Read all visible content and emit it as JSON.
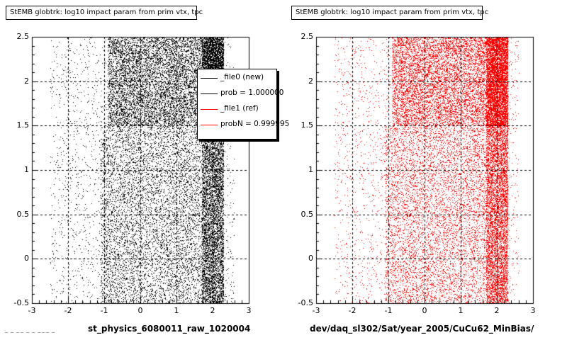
{
  "chart_data": [
    {
      "type": "scatter",
      "title": "StEMB globtrk: log10 impact param from prim vtx, tpc",
      "xlabel": "st_physics_6080011_raw_1020004",
      "ylabel": "",
      "xlim": [
        -3,
        3
      ],
      "ylim": [
        -0.5,
        2.5
      ],
      "x_ticks": [
        "-3",
        "-2",
        "-1",
        "0",
        "1",
        "2",
        "3"
      ],
      "y_ticks": [
        "-0.5",
        "0",
        "0.5",
        "1",
        "1.5",
        "2",
        "2.5"
      ],
      "grid": true,
      "color": "#000000",
      "legend": {
        "placement": "top-right",
        "entries": [
          {
            "label": "_file0 (new)",
            "color": "#000000"
          },
          {
            "label": "prob = 1.000000",
            "color": "#000000"
          },
          {
            "label": "_file1 (ref)",
            "color": "#ff0000"
          },
          {
            "label": "probN = 0.999995",
            "color": "#ff0000"
          }
        ]
      },
      "density_regions": [
        {
          "x": [
            -0.9,
            2.3
          ],
          "y": [
            1.5,
            2.5
          ],
          "level": "high"
        },
        {
          "x": [
            -1.1,
            2.3
          ],
          "y": [
            -0.5,
            1.5
          ],
          "level": "medium"
        },
        {
          "x": [
            -2.5,
            2.6
          ],
          "y": [
            -0.5,
            2.5
          ],
          "level": "sparse"
        }
      ],
      "edge_x": 2.3
    },
    {
      "type": "scatter",
      "title": "StEMB globtrk: log10 impact param from prim vtx, tpc",
      "xlabel": "dev/daq_sl302/Sat/year_2005/CuCu62_MinBias/",
      "ylabel": "",
      "xlim": [
        -3,
        3
      ],
      "ylim": [
        -0.5,
        2.5
      ],
      "x_ticks": [
        "-3",
        "-2",
        "-1",
        "0",
        "1",
        "2",
        "3"
      ],
      "y_ticks": [
        "-0.5",
        "0",
        "0.5",
        "1",
        "1.5",
        "2",
        "2.5"
      ],
      "grid": true,
      "color": "#ff0000",
      "density_regions": [
        {
          "x": [
            -0.9,
            2.3
          ],
          "y": [
            1.5,
            2.5
          ],
          "level": "high"
        },
        {
          "x": [
            -1.1,
            2.3
          ],
          "y": [
            -0.5,
            1.5
          ],
          "level": "medium"
        },
        {
          "x": [
            -2.5,
            2.6
          ],
          "y": [
            -0.5,
            2.5
          ],
          "level": "sparse"
        }
      ],
      "edge_x": 2.3
    }
  ],
  "footer_text": "~ ~ ~~ ~ ~ ~~~ ~"
}
